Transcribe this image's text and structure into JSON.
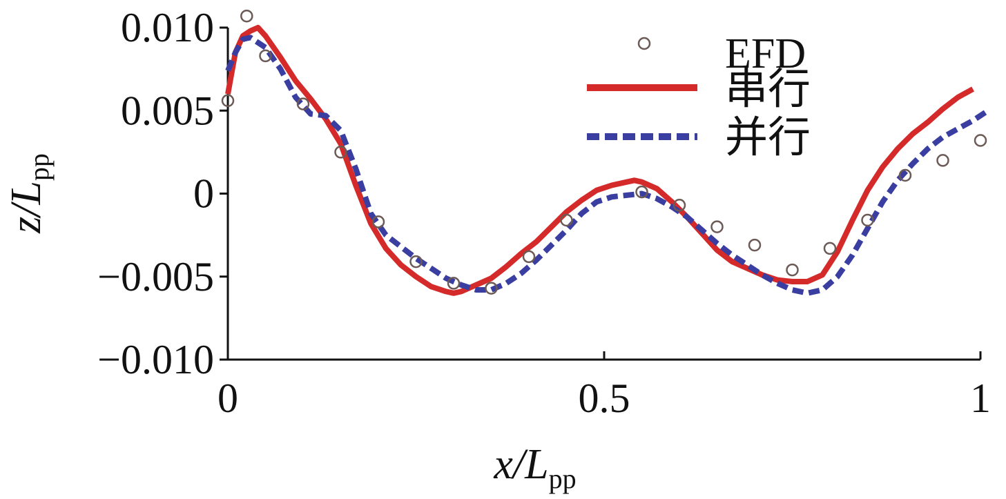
{
  "chart_data": {
    "type": "line",
    "title": "",
    "xlabel": {
      "main": "x/L",
      "sub": "pp"
    },
    "ylabel": {
      "main": "z/L",
      "sub": "pp"
    },
    "xlim": [
      0,
      1
    ],
    "ylim": [
      -0.01,
      0.01
    ],
    "xticks": [
      0,
      0.5,
      1
    ],
    "xtick_labels": [
      "0",
      "0.5",
      "1"
    ],
    "yticks": [
      -0.01,
      -0.005,
      0,
      0.005,
      0.01
    ],
    "ytick_labels": [
      "−0.010",
      "−0.005",
      "0",
      "0.005",
      "0.010"
    ],
    "grid": false,
    "legend_position": "top-right",
    "colors": {
      "serial": "#d42a2a",
      "parallel": "#3a3ea0",
      "efd": "#6b5a55"
    },
    "series": [
      {
        "name": "EFD",
        "style": "markers",
        "x": [
          0.0,
          0.025,
          0.05,
          0.1,
          0.15,
          0.2,
          0.25,
          0.3,
          0.35,
          0.4,
          0.45,
          0.55,
          0.6,
          0.65,
          0.7,
          0.75,
          0.8,
          0.85,
          0.9,
          0.95,
          1.0
        ],
        "y": [
          0.0056,
          0.0107,
          0.0083,
          0.0054,
          0.0025,
          -0.0017,
          -0.0041,
          -0.0054,
          -0.0057,
          -0.0038,
          -0.0016,
          0.0001,
          -0.0007,
          -0.002,
          -0.0031,
          -0.0046,
          -0.0033,
          -0.0016,
          0.0011,
          0.002,
          0.0032
        ]
      },
      {
        "name": "串行",
        "style": "solid",
        "x": [
          0.0,
          0.01,
          0.02,
          0.03,
          0.04,
          0.05,
          0.07,
          0.09,
          0.11,
          0.13,
          0.15,
          0.17,
          0.19,
          0.21,
          0.23,
          0.25,
          0.27,
          0.29,
          0.3,
          0.31,
          0.33,
          0.35,
          0.37,
          0.39,
          0.41,
          0.43,
          0.45,
          0.47,
          0.49,
          0.51,
          0.53,
          0.54,
          0.55,
          0.57,
          0.59,
          0.61,
          0.63,
          0.65,
          0.67,
          0.69,
          0.71,
          0.73,
          0.75,
          0.77,
          0.79,
          0.81,
          0.83,
          0.85,
          0.87,
          0.89,
          0.91,
          0.93,
          0.95,
          0.97,
          0.99
        ],
        "y": [
          0.006,
          0.0085,
          0.0095,
          0.0098,
          0.01,
          0.0095,
          0.0082,
          0.0068,
          0.0057,
          0.0045,
          0.003,
          0.0005,
          -0.0018,
          -0.0033,
          -0.0043,
          -0.005,
          -0.0056,
          -0.0059,
          -0.006,
          -0.0059,
          -0.0055,
          -0.0051,
          -0.0044,
          -0.0036,
          -0.0029,
          -0.002,
          -0.0011,
          -0.0004,
          0.0002,
          0.0005,
          0.0007,
          0.0008,
          0.0007,
          0.0003,
          -0.0005,
          -0.0014,
          -0.0024,
          -0.0034,
          -0.0041,
          -0.0045,
          -0.0049,
          -0.0052,
          -0.0053,
          -0.0053,
          -0.0049,
          -0.0035,
          -0.0016,
          0.0002,
          0.0016,
          0.0027,
          0.0036,
          0.0043,
          0.0051,
          0.0058,
          0.0063
        ]
      },
      {
        "name": "并行",
        "style": "dashed",
        "x": [
          0.0,
          0.01,
          0.02,
          0.03,
          0.05,
          0.07,
          0.09,
          0.11,
          0.13,
          0.15,
          0.17,
          0.19,
          0.21,
          0.23,
          0.25,
          0.27,
          0.29,
          0.31,
          0.33,
          0.35,
          0.37,
          0.39,
          0.41,
          0.43,
          0.45,
          0.47,
          0.49,
          0.51,
          0.53,
          0.55,
          0.57,
          0.59,
          0.61,
          0.63,
          0.65,
          0.67,
          0.69,
          0.71,
          0.73,
          0.75,
          0.77,
          0.79,
          0.81,
          0.83,
          0.85,
          0.87,
          0.89,
          0.91,
          0.93,
          0.95,
          0.97,
          0.99,
          1.01
        ],
        "y": [
          0.0074,
          0.0085,
          0.0093,
          0.0094,
          0.0088,
          0.0075,
          0.0058,
          0.0048,
          0.0047,
          0.0038,
          0.0015,
          -0.0012,
          -0.0025,
          -0.0032,
          -0.0039,
          -0.0045,
          -0.0051,
          -0.0055,
          -0.0058,
          -0.0058,
          -0.0054,
          -0.0048,
          -0.004,
          -0.0031,
          -0.0022,
          -0.0012,
          -0.0005,
          -0.0002,
          -0.0001,
          0.0,
          -0.0003,
          -0.0008,
          -0.0014,
          -0.0022,
          -0.003,
          -0.0037,
          -0.0043,
          -0.0049,
          -0.0054,
          -0.0058,
          -0.006,
          -0.0058,
          -0.005,
          -0.0037,
          -0.0021,
          -0.0005,
          0.0008,
          0.0018,
          0.0027,
          0.0034,
          0.0039,
          0.0044,
          0.005
        ]
      }
    ],
    "legend": [
      "EFD",
      "串行",
      "并行"
    ]
  }
}
